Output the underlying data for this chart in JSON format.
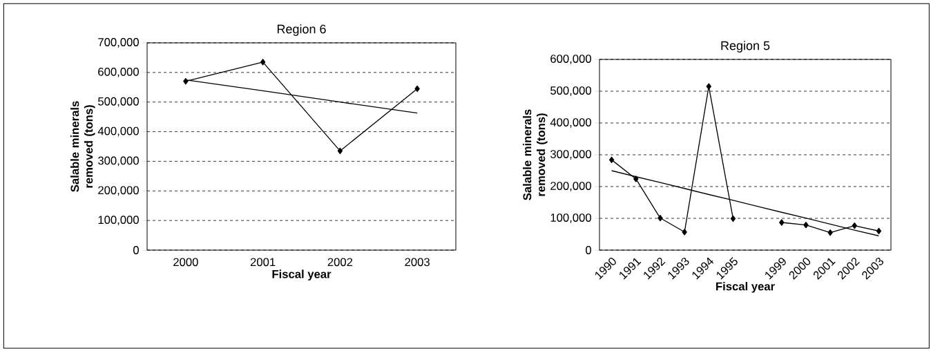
{
  "chart_data": [
    {
      "type": "line",
      "title": "Region 6",
      "xlabel": "Fiscal year",
      "ylabel": "Salable minerals removed (tons)",
      "categories": [
        "2000",
        "2001",
        "2002",
        "2003"
      ],
      "ylim": [
        0,
        700000
      ],
      "yticks": [
        {
          "value": 0,
          "label": "0"
        },
        {
          "value": 100000,
          "label": "100,000"
        },
        {
          "value": 200000,
          "label": "200,000"
        },
        {
          "value": 300000,
          "label": "300,000"
        },
        {
          "value": 400000,
          "label": "400,000"
        },
        {
          "value": 500000,
          "label": "500,000"
        },
        {
          "value": 600000,
          "label": "600,000"
        },
        {
          "value": 700000,
          "label": "700,000"
        }
      ],
      "grid": "y",
      "marker": "diamond",
      "series": [
        {
          "color": "#000000",
          "values": [
            570000,
            635000,
            335000,
            545000
          ]
        },
        {
          "type": "line",
          "color": "#000000",
          "marker": "none",
          "values": [
            575000,
            538000,
            500000,
            463000
          ]
        }
      ]
    },
    {
      "type": "line",
      "title": "Region 5",
      "xlabel": "Fiscal year",
      "ylabel": "Salable minerals removed (tons)",
      "categories": [
        "1990",
        "1991",
        "1992",
        "1993",
        "1994",
        "1995",
        null,
        "1999",
        "2000",
        "2001",
        "2002",
        "2003"
      ],
      "ylim": [
        0,
        600000
      ],
      "yticks": [
        {
          "value": 0,
          "label": "0"
        },
        {
          "value": 100000,
          "label": "100,000"
        },
        {
          "value": 200000,
          "label": "200,000"
        },
        {
          "value": 300000,
          "label": "300,000"
        },
        {
          "value": 400000,
          "label": "400,000"
        },
        {
          "value": 500000,
          "label": "500,000"
        },
        {
          "value": 600000,
          "label": "600,000"
        }
      ],
      "grid": "y",
      "marker": "diamond",
      "series": [
        {
          "color": "#000000",
          "values": [
            284000,
            224000,
            101000,
            57000,
            515000,
            99000,
            null,
            87000,
            79000,
            55000,
            77000,
            60000
          ]
        },
        {
          "type": "line",
          "color": "#000000",
          "marker": "none",
          "values": [
            250000,
            231000,
            213000,
            194000,
            175000,
            157000,
            138000,
            119000,
            101000,
            82000,
            63000,
            45000
          ]
        }
      ]
    }
  ]
}
